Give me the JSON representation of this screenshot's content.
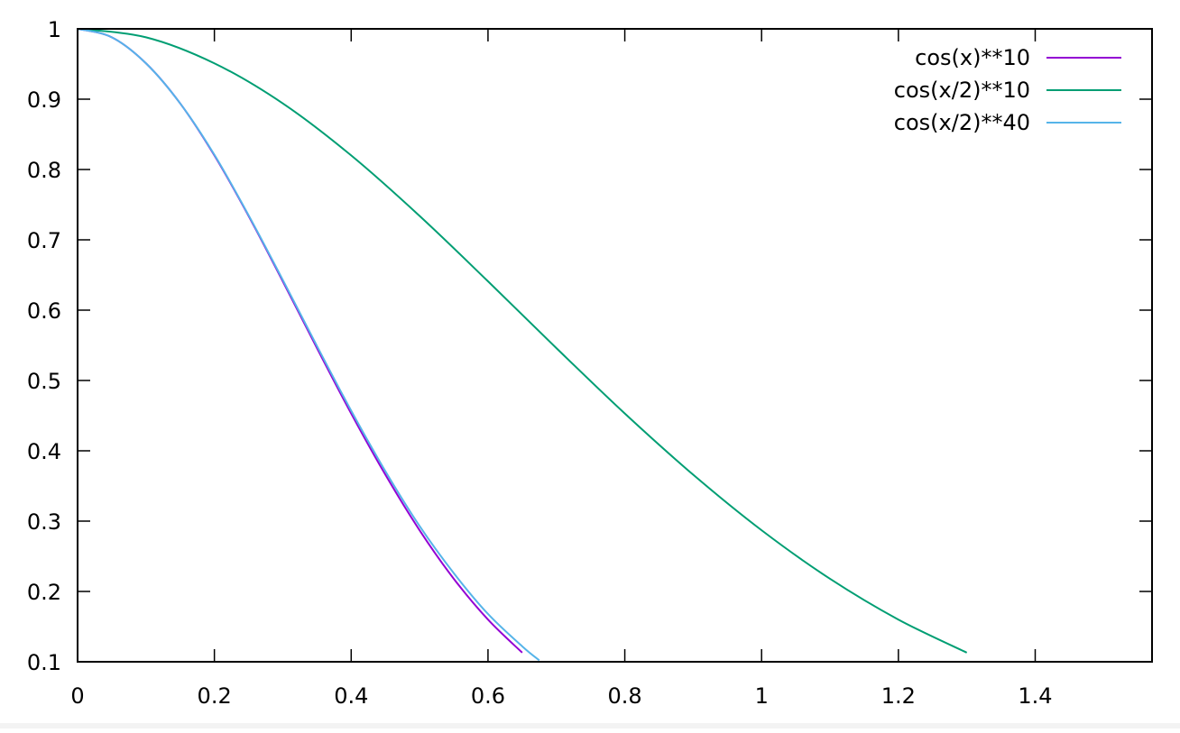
{
  "chart_data": {
    "type": "line",
    "title": "",
    "xlabel": "",
    "ylabel": "",
    "xlim": [
      0,
      1.5708
    ],
    "ylim": [
      0.1,
      1
    ],
    "x_ticks": [
      0,
      0.2,
      0.4,
      0.6,
      0.8,
      1,
      1.2,
      1.4
    ],
    "x_tick_labels": [
      "0",
      "0.2",
      "0.4",
      "0.6",
      "0.8",
      "1",
      "1.2",
      "1.4"
    ],
    "y_ticks": [
      0.1,
      0.2,
      0.3,
      0.4,
      0.5,
      0.6,
      0.7,
      0.8,
      0.9,
      1
    ],
    "y_tick_labels": [
      "0.1",
      "0.2",
      "0.3",
      "0.4",
      "0.5",
      "0.6",
      "0.7",
      "0.8",
      "0.9",
      "1"
    ],
    "grid": false,
    "legend_position": "top-right",
    "series": [
      {
        "name": "cos(x)**10",
        "color": "#9400d3",
        "x": [
          0,
          0.05,
          0.1,
          0.15,
          0.2,
          0.25,
          0.3,
          0.35,
          0.4,
          0.45,
          0.5,
          0.55,
          0.6,
          0.65
        ],
        "y": [
          1,
          0.988,
          0.951,
          0.894,
          0.82,
          0.734,
          0.641,
          0.546,
          0.453,
          0.366,
          0.287,
          0.218,
          0.16,
          0.113
        ]
      },
      {
        "name": "cos(x/2)**10",
        "color": "#009e73",
        "x": [
          0,
          0.1,
          0.2,
          0.3,
          0.4,
          0.5,
          0.6,
          0.7,
          0.8,
          0.9,
          1.0,
          1.1,
          1.2,
          1.3
        ],
        "y": [
          1,
          0.988,
          0.951,
          0.894,
          0.82,
          0.734,
          0.641,
          0.546,
          0.453,
          0.366,
          0.287,
          0.218,
          0.16,
          0.113
        ]
      },
      {
        "name": "cos(x/2)**40",
        "color": "#56b4e9",
        "x": [
          0,
          0.05,
          0.1,
          0.15,
          0.2,
          0.25,
          0.3,
          0.35,
          0.4,
          0.45,
          0.5,
          0.55,
          0.6,
          0.65,
          0.675
        ],
        "y": [
          1,
          0.988,
          0.951,
          0.894,
          0.821,
          0.735,
          0.643,
          0.549,
          0.457,
          0.371,
          0.293,
          0.226,
          0.168,
          0.122,
          0.102
        ]
      }
    ]
  }
}
